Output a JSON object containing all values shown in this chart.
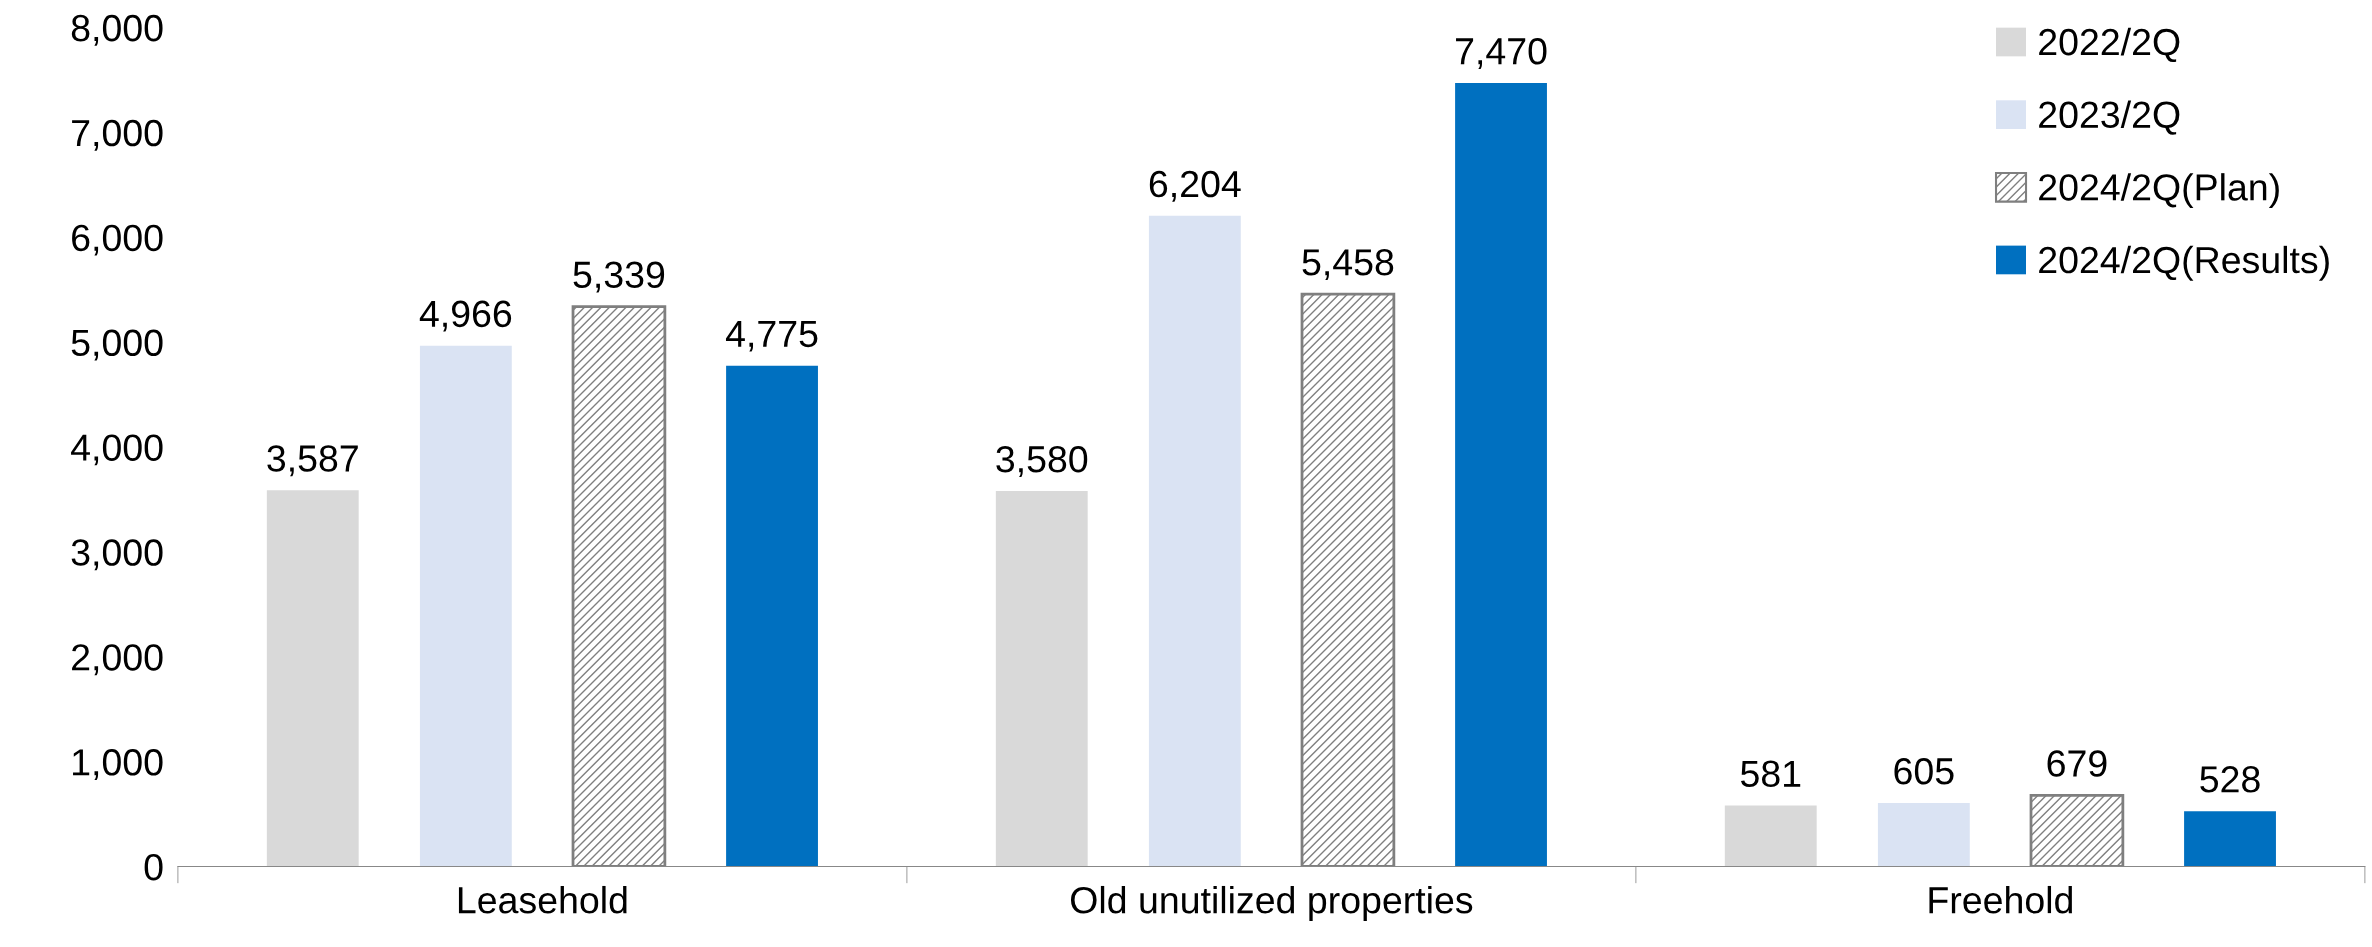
{
  "chart_data": {
    "type": "bar",
    "categories": [
      "Leasehold",
      "Old unutilized properties",
      "Freehold"
    ],
    "series": [
      {
        "name": "2022/2Q",
        "color": "#d9d9d9",
        "values": [
          3587,
          3580,
          581
        ],
        "value_labels": [
          "3,587",
          "3,580",
          "581"
        ]
      },
      {
        "name": "2023/2Q",
        "color": "#dae3f3",
        "values": [
          4966,
          6204,
          605
        ],
        "value_labels": [
          "4,966",
          "6,204",
          "605"
        ]
      },
      {
        "name": "2024/2Q(Plan)",
        "color": "#7f7f7f",
        "values": [
          5339,
          5458,
          679
        ],
        "value_labels": [
          "5,339",
          "5,458",
          "679"
        ]
      },
      {
        "name": "2024/2Q(Results)",
        "color": "#0070c0",
        "values": [
          4775,
          7470,
          528
        ],
        "value_labels": [
          "4,775",
          "7,470",
          "528"
        ]
      }
    ],
    "ylim": [
      0,
      8000
    ],
    "yticks": [
      {
        "value": 0,
        "label": "0"
      },
      {
        "value": 1000,
        "label": "1,000"
      },
      {
        "value": 2000,
        "label": "2,000"
      },
      {
        "value": 3000,
        "label": "3,000"
      },
      {
        "value": 4000,
        "label": "4,000"
      },
      {
        "value": 5000,
        "label": "5,000"
      },
      {
        "value": 6000,
        "label": "6,000"
      },
      {
        "value": 7000,
        "label": "7,000"
      },
      {
        "value": 8000,
        "label": "8,000"
      }
    ],
    "legend": "top right",
    "grid": false
  }
}
